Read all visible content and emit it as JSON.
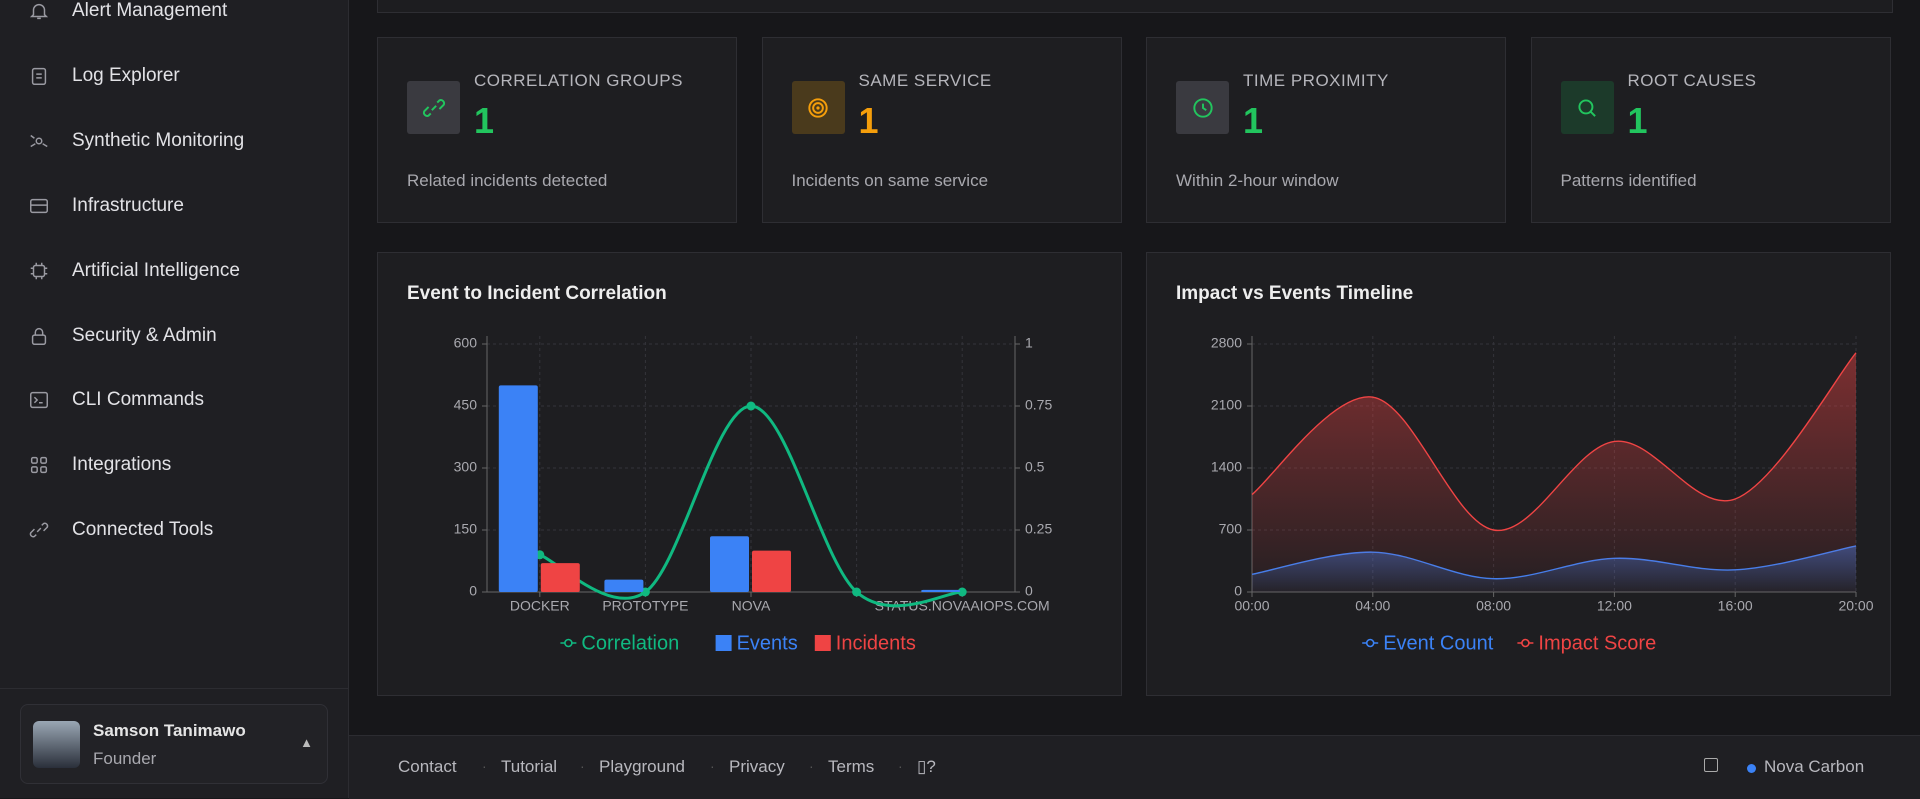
{
  "sidebar": {
    "nav": [
      "Alert Management",
      "Log Explorer",
      "Synthetic Monitoring",
      "Infrastructure",
      "Artificial Intelligence",
      "Security & Admin",
      "CLI Commands",
      "Integrations",
      "Connected Tools"
    ],
    "user": {
      "name": "Samson Tanimawo",
      "role": "Founder"
    }
  },
  "stats": [
    {
      "label": "CORRELATION GROUPS",
      "value": 1,
      "description": "Related incidents detected",
      "color": "#22c55e"
    },
    {
      "label": "SAME SERVICE",
      "value": 1,
      "description": "Incidents on same service",
      "color": "#f59e0b"
    },
    {
      "label": "TIME PROXIMITY",
      "value": 1,
      "description": "Within 2-hour window",
      "color": "#22c55e"
    },
    {
      "label": "ROOT CAUSES",
      "value": 1,
      "description": "Patterns identified",
      "color": "#22c55e"
    }
  ],
  "chart_data": [
    {
      "type": "bar",
      "title": "Event to Incident Correlation",
      "categories": [
        "DOCKER",
        "PROTOTYPE",
        "NOVA",
        null,
        "STATUS.NOVAAIOPS.COM"
      ],
      "series": [
        {
          "name": "Correlation",
          "type": "line",
          "axis": "y2",
          "color": "#10b981",
          "values": [
            0.15,
            0,
            0.75,
            0,
            0
          ]
        },
        {
          "name": "Events",
          "color": "#3b82f6",
          "values": [
            500,
            30,
            135,
            0,
            5
          ]
        },
        {
          "name": "Incidents",
          "color": "#ef4444",
          "values": [
            70,
            0,
            100,
            0,
            0
          ]
        }
      ],
      "ylim": [
        0,
        600
      ],
      "yticks": [
        0,
        150,
        300,
        450,
        600
      ],
      "y2lim": [
        0,
        1
      ],
      "y2ticks": [
        0,
        0.25,
        0.5,
        0.75,
        1
      ],
      "grid": true
    },
    {
      "type": "area",
      "title": "Impact vs Events Timeline",
      "categories": [
        "00:00",
        "04:00",
        "08:00",
        "12:00",
        "16:00",
        "20:00"
      ],
      "series": [
        {
          "name": "Event Count",
          "color": "#3b82f6",
          "values": [
            200,
            450,
            150,
            380,
            250,
            520
          ]
        },
        {
          "name": "Impact Score",
          "color": "#ef4444",
          "values": [
            1100,
            2200,
            700,
            1700,
            1050,
            2700
          ]
        }
      ],
      "ylim": [
        0,
        2800
      ],
      "yticks": [
        0,
        700,
        1400,
        2100,
        2800
      ],
      "grid": true
    }
  ],
  "footer": {
    "links": [
      "Contact",
      "Tutorial",
      "Playground",
      "Privacy",
      "Terms",
      "▯?"
    ],
    "brand": "Nova Carbon"
  }
}
